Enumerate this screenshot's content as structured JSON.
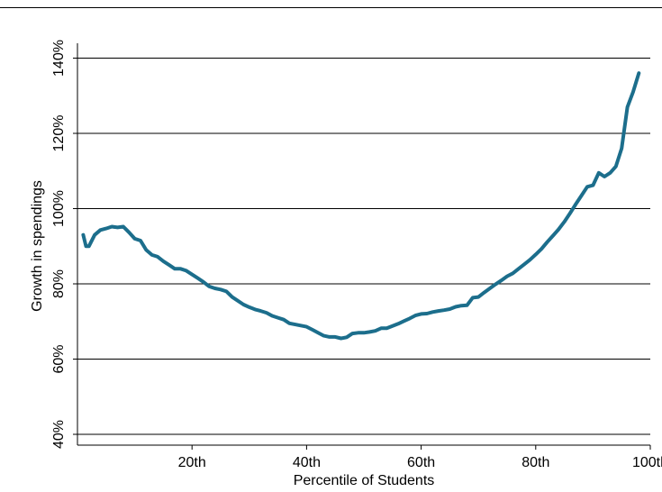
{
  "chart_data": {
    "type": "line",
    "title": "",
    "xlabel": "Percentile of Students",
    "ylabel": "Growth in spendings",
    "xlim": [
      0,
      100
    ],
    "ylim": [
      40,
      140
    ],
    "x_ticks": [
      20,
      40,
      60,
      80,
      100
    ],
    "x_tick_labels": [
      "20th",
      "40th",
      "60th",
      "80th",
      "100th"
    ],
    "y_ticks": [
      40,
      60,
      80,
      100,
      120,
      140
    ],
    "y_tick_labels": [
      "40%",
      "60%",
      "80%",
      "100%",
      "120%",
      "140%"
    ],
    "grid": "horizontal",
    "line_color": "#1c6e8c",
    "series": [
      {
        "x": [
          1,
          1.5,
          2,
          3,
          4,
          5,
          6,
          7,
          8,
          9,
          10,
          11,
          12,
          13,
          14,
          15,
          16,
          17,
          18,
          19,
          20,
          21,
          22,
          23,
          24,
          25,
          26,
          27,
          28,
          29,
          30,
          31,
          32,
          33,
          34,
          35,
          36,
          37,
          38,
          39,
          40,
          41,
          42,
          43,
          44,
          45,
          46,
          47,
          48,
          49,
          50,
          51,
          52,
          53,
          54,
          55,
          56,
          57,
          58,
          59,
          60,
          61,
          62,
          63,
          64,
          65,
          66,
          67,
          68,
          69,
          70,
          71,
          72,
          73,
          74,
          75,
          76,
          77,
          78,
          79,
          80,
          81,
          82,
          83,
          84,
          85,
          86,
          87,
          88,
          89,
          90,
          91,
          92,
          93,
          94,
          95,
          96,
          97,
          98
        ],
        "y": [
          93,
          90,
          90,
          93,
          94.3,
          94.7,
          95.2,
          95,
          95.2,
          93.7,
          92,
          91.5,
          89,
          87.7,
          87.2,
          86,
          85,
          84,
          84,
          83.5,
          82.5,
          81.5,
          80.5,
          79.3,
          78.8,
          78.5,
          78,
          76.5,
          75.5,
          74.5,
          73.8,
          73.2,
          72.8,
          72.3,
          71.5,
          71,
          70.5,
          69.5,
          69.2,
          68.9,
          68.6,
          67.8,
          67,
          66.2,
          65.9,
          65.9,
          65.5,
          65.8,
          66.8,
          67,
          67,
          67.2,
          67.5,
          68.2,
          68.2,
          68.8,
          69.4,
          70.1,
          70.8,
          71.6,
          72,
          72.1,
          72.5,
          72.8,
          73,
          73.3,
          73.9,
          74.2,
          74.3,
          76.3,
          76.5,
          77.7,
          78.8,
          79.9,
          80.9,
          82,
          82.8,
          84,
          85.2,
          86.4,
          87.8,
          89.3,
          91.1,
          92.8,
          94.5,
          96.5,
          98.8,
          101.2,
          103.5,
          105.8,
          106.2,
          109.5,
          108.5,
          109.5,
          111.2,
          116,
          127,
          131,
          136
        ]
      }
    ]
  }
}
